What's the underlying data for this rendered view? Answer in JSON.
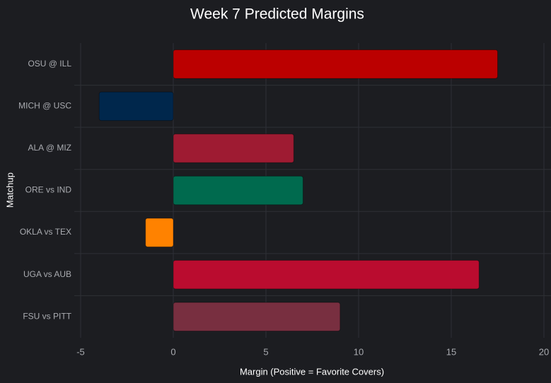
{
  "chart_data": {
    "type": "barh",
    "title": "Week 7 Predicted Margins",
    "x_label": "Margin (Positive = Favorite Covers)",
    "y_label": "Matchup",
    "categories": [
      "OSU @ ILL",
      "MICH @ USC",
      "ALA @ MIZ",
      "ORE vs IND",
      "OKLA vs TEX",
      "UGA vs AUB",
      "FSU vs PITT"
    ],
    "values": [
      17.5,
      -4,
      6.5,
      7,
      -1.5,
      16.5,
      9
    ],
    "colors": [
      "#bb0000",
      "#00274c",
      "#9e1b32",
      "#006a4e",
      "#ff8200",
      "#ba0c2f",
      "#782f40"
    ],
    "xlim": [
      -5,
      20
    ],
    "xticks": [
      -5,
      0,
      5,
      10,
      15,
      20
    ],
    "grid": true
  }
}
